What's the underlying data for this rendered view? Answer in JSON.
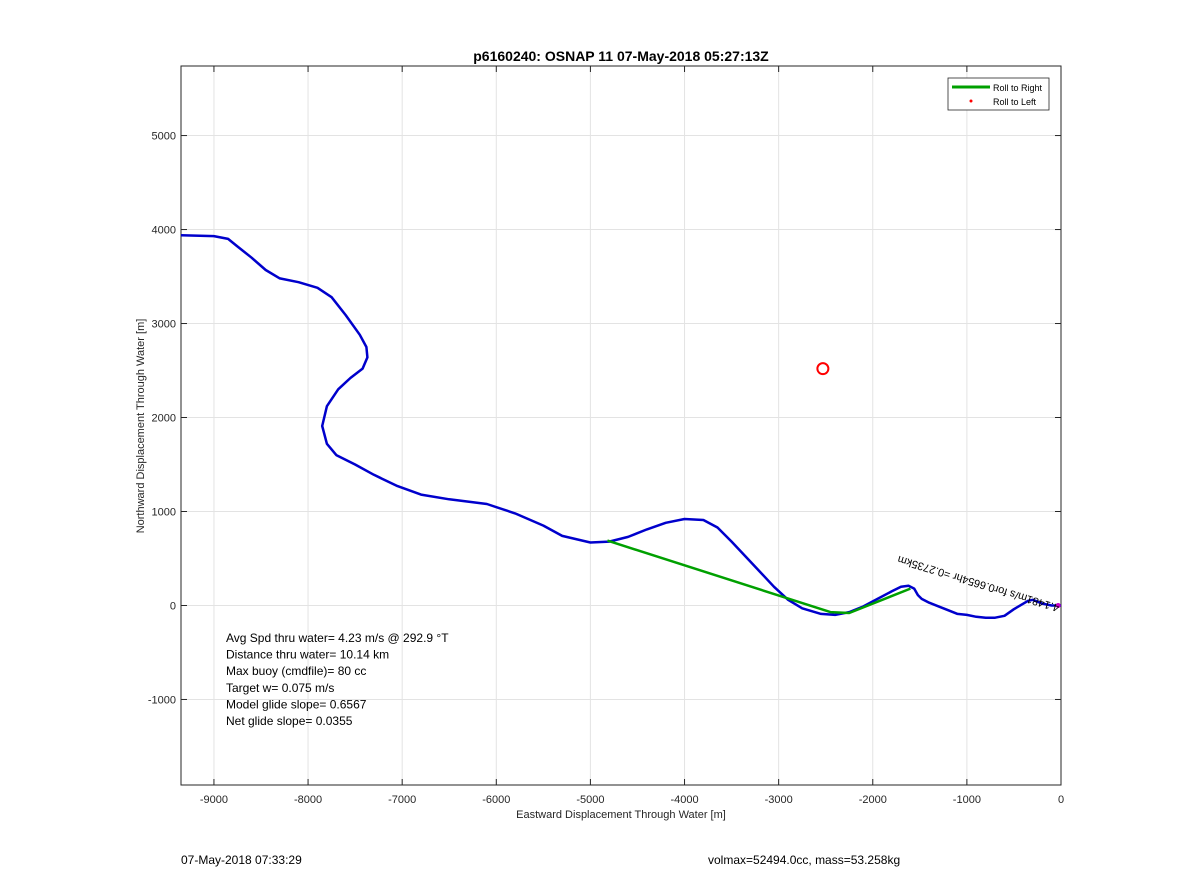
{
  "chart_data": {
    "type": "line",
    "title": "p6160240: OSNAP 11 07-May-2018 05:27:13Z",
    "xlabel": "Eastward Displacement Through Water [m]",
    "ylabel": "Northward Displacement Through Water [m]",
    "xlim": [
      -9350,
      0
    ],
    "ylim": [
      -1910,
      5740
    ],
    "xticks": [
      -9000,
      -8000,
      -7000,
      -6000,
      -5000,
      -4000,
      -3000,
      -2000,
      -1000,
      0
    ],
    "yticks": [
      -1000,
      0,
      1000,
      2000,
      3000,
      4000,
      5000
    ],
    "grid": true,
    "legend": {
      "location": "top-right",
      "entries": [
        {
          "label": "Roll to Right",
          "color": "#00a000",
          "marker": "line"
        },
        {
          "label": "Roll to Left",
          "color": "#ff0000",
          "marker": "dot"
        }
      ]
    },
    "series": [
      {
        "color": "#0000cc",
        "x": [
          -9350,
          -9000,
          -8850,
          -8750,
          -8600,
          -8450,
          -8300,
          -8100,
          -7900,
          -7750,
          -7600,
          -7450,
          -7380,
          -7370,
          -7420,
          -7550,
          -7680,
          -7800,
          -7850,
          -7800,
          -7700,
          -7500,
          -7300,
          -7050,
          -6800,
          -6500,
          -6100,
          -5800,
          -5500,
          -5300,
          -5000,
          -4800,
          -4600,
          -4400,
          -4200,
          -4000,
          -3800,
          -3650,
          -3500,
          -3350,
          -3200,
          -3050,
          -2900,
          -2750,
          -2550,
          -2400,
          -2250,
          -2100,
          -1950,
          -1800,
          -1700,
          -1620,
          -1560,
          -1520,
          -1480,
          -1400,
          -1300,
          -1200,
          -1100,
          -1000,
          -900,
          -800,
          -700,
          -600,
          -500,
          -400,
          -350,
          -300,
          -250,
          -200,
          -150,
          -100,
          -50,
          0
        ],
        "y": [
          3940,
          3930,
          3900,
          3820,
          3700,
          3570,
          3480,
          3440,
          3380,
          3280,
          3090,
          2880,
          2750,
          2640,
          2520,
          2420,
          2300,
          2120,
          1910,
          1720,
          1600,
          1500,
          1390,
          1270,
          1180,
          1130,
          1080,
          980,
          850,
          740,
          670,
          680,
          730,
          810,
          880,
          920,
          910,
          830,
          680,
          520,
          360,
          200,
          60,
          -30,
          -90,
          -100,
          -70,
          -10,
          70,
          150,
          200,
          210,
          180,
          110,
          70,
          30,
          -10,
          -50,
          -90,
          -100,
          -120,
          -130,
          -130,
          -110,
          -40,
          20,
          50,
          60,
          40,
          20,
          10,
          0,
          0,
          0
        ]
      },
      {
        "color": "#00a000",
        "x": [
          -4820,
          -2450,
          -2250,
          -1600
        ],
        "y": [
          690,
          -70,
          -80,
          180
        ]
      }
    ],
    "markers": [
      {
        "type": "circle",
        "x": -2530,
        "y": 2520,
        "color": "#ff0000"
      },
      {
        "type": "dot",
        "x": -30,
        "y": 0,
        "color": "#cc00cc"
      }
    ],
    "annotations": [
      {
        "text": "Avg Spd thru water=  4.23 m/s @ 292.9 °T"
      },
      {
        "text": "Distance thru water= 10.14 km"
      },
      {
        "text": "Max buoy (cmdfile)= 80 cc"
      },
      {
        "text": "Target w= 0.075 m/s"
      },
      {
        "text": "Model glide slope= 0.6567"
      },
      {
        "text": "Net glide slope= 0.0355"
      }
    ],
    "segment_label": "4.1481m/s for0.6654hr =0.2735km"
  },
  "footer": {
    "left": "07-May-2018 07:33:29",
    "right": "volmax=52494.0cc, mass=53.258kg"
  }
}
